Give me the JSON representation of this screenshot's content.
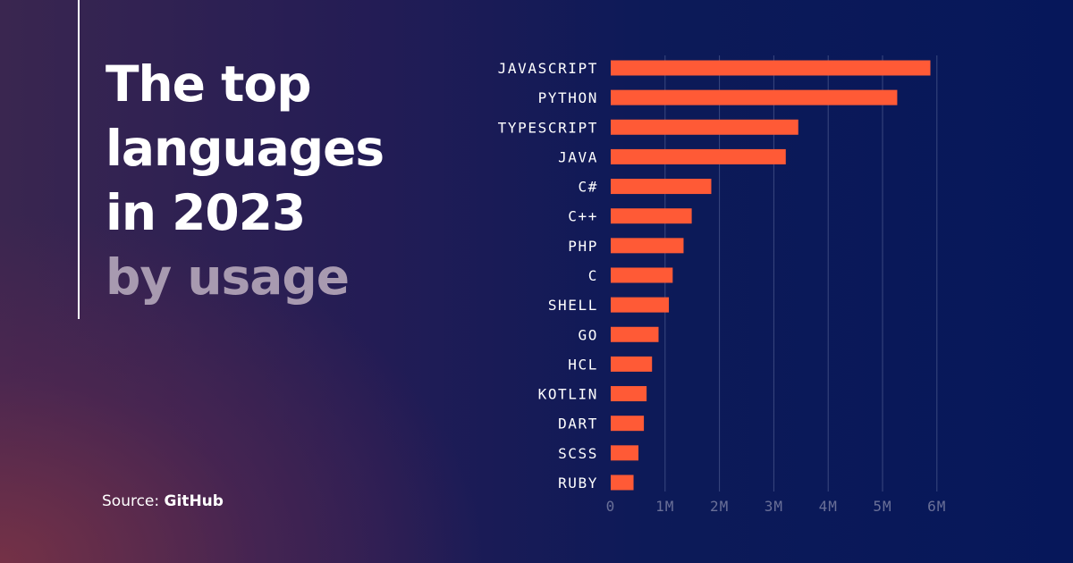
{
  "heading": {
    "line1": "The top",
    "line2": "languages",
    "line3": "in 2023",
    "line4": "by usage"
  },
  "source": {
    "prefix": "Source:",
    "name": "GitHub"
  },
  "colors": {
    "bar": "#ff5a36",
    "accent_line": "#ffffff",
    "subtitle": "#a89ab0",
    "gridline": "#3a4880",
    "tick_label": "#6a7098"
  },
  "chart_data": {
    "type": "bar",
    "orientation": "horizontal",
    "categories": [
      "JAVASCRIPT",
      "PYTHON",
      "TYPESCRIPT",
      "JAVA",
      "C#",
      "C++",
      "PHP",
      "C",
      "SHELL",
      "GO",
      "HCL",
      "KOTLIN",
      "DART",
      "SCSS",
      "RUBY"
    ],
    "values": [
      5.88,
      5.27,
      3.45,
      3.22,
      1.85,
      1.49,
      1.34,
      1.14,
      1.07,
      0.88,
      0.76,
      0.66,
      0.61,
      0.51,
      0.42
    ],
    "unit": "millions",
    "xlim": [
      0,
      6
    ],
    "xticks": [
      0,
      1,
      2,
      3,
      4,
      5,
      6
    ],
    "xtick_labels": [
      "0",
      "1M",
      "2M",
      "3M",
      "4M",
      "5M",
      "6M"
    ],
    "grid": true,
    "title": "",
    "xlabel": "",
    "ylabel": ""
  }
}
